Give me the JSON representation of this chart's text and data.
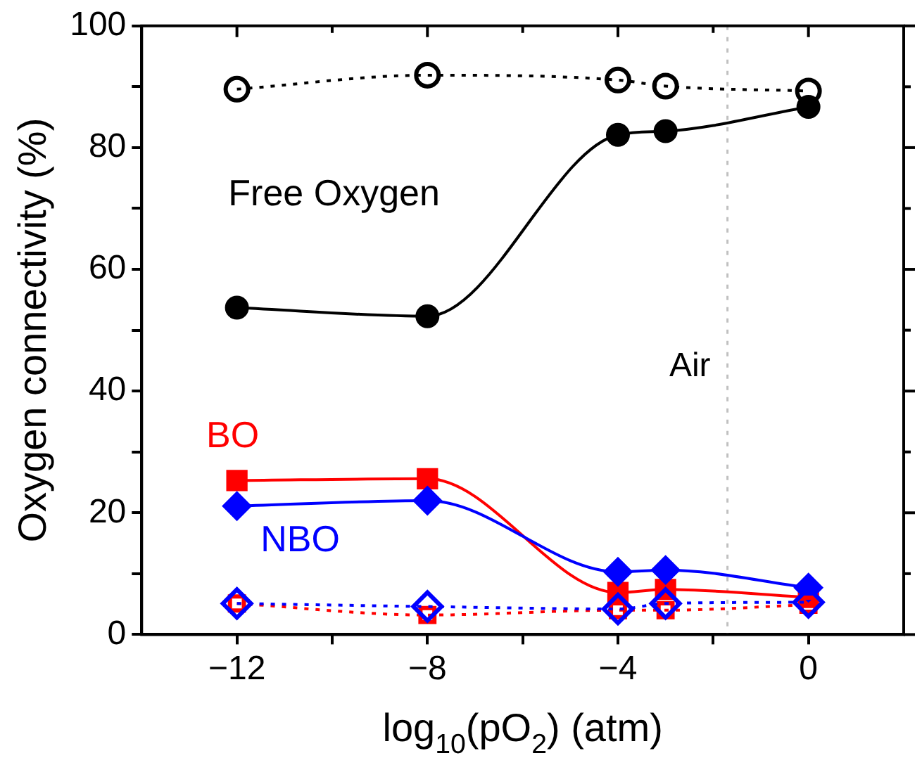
{
  "chart_data": {
    "type": "line",
    "xlabel": "log$_{10}$(pO$_{2}$) (atm)",
    "ylabel": "Oxygen connectivity (%)",
    "x": [
      -12,
      -8,
      -4,
      -3,
      0
    ],
    "xlim": [
      -14,
      2
    ],
    "xticks": [
      -12,
      {
        "value": -10,
        "label": null
      },
      -8,
      {
        "value": -6,
        "label": null
      },
      -4,
      {
        "value": -2,
        "label": null
      },
      0
    ],
    "ylim": [
      0,
      100
    ],
    "yticks": [
      0,
      {
        "value": 10,
        "label": null
      },
      20,
      {
        "value": 30,
        "label": null
      },
      40,
      {
        "value": 50,
        "label": null
      },
      60,
      {
        "value": 70,
        "label": null
      },
      80,
      {
        "value": 90,
        "label": null
      },
      100
    ],
    "grid": false,
    "legend": false,
    "ref_lines": [
      {
        "axis": "x",
        "value": -1.7,
        "label": "Air",
        "color": "#c0c0c0",
        "line_style": "dotted"
      }
    ],
    "series": [
      {
        "color": "#000000",
        "marker": "circle",
        "line_style": "dotted",
        "values": [
          89.6,
          91.9,
          91.1,
          90.1,
          89.3
        ]
      },
      {
        "name": "Free Oxygen",
        "color": "#000000",
        "marker": "circle",
        "line_style": "solid",
        "values": [
          53.7,
          52.3,
          82.1,
          82.7,
          86.7
        ]
      },
      {
        "name": "BO",
        "color": "#ff0000",
        "marker": "square",
        "line_style": "solid",
        "values": [
          25.3,
          25.6,
          6.9,
          7.4,
          6.1
        ]
      },
      {
        "name": "NBO",
        "color": "#0000ff",
        "marker": "diamond",
        "line_style": "solid",
        "values": [
          21.1,
          22.0,
          10.3,
          10.6,
          7.7
        ]
      },
      {
        "color": "#ff0000",
        "marker": "square",
        "line_style": "dotted",
        "values": [
          5.1,
          3.2,
          4.0,
          4.0,
          4.9
        ]
      },
      {
        "color": "#0000ff",
        "marker": "diamond",
        "line_style": "dotted",
        "values": [
          5.1,
          4.6,
          4.2,
          5.1,
          5.3
        ]
      }
    ]
  }
}
